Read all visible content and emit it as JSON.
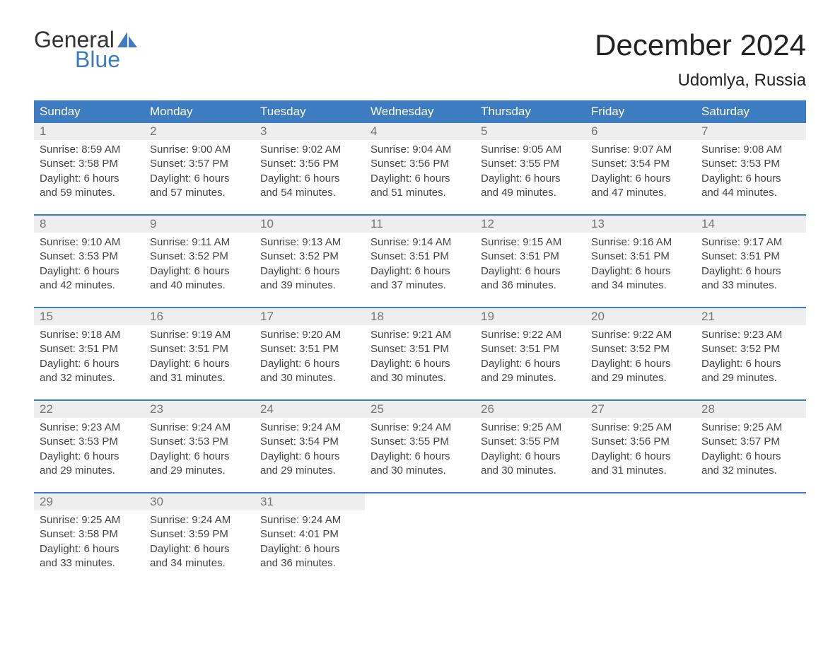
{
  "logo": {
    "text_general": "General",
    "text_blue": "Blue",
    "sail_color": "#3d7cc0"
  },
  "title": {
    "month": "December 2024",
    "location": "Udomlya, Russia"
  },
  "colors": {
    "header_bg": "#3d7cc0",
    "header_text": "#ffffff",
    "daynum_bg": "#eeeeee",
    "daynum_text": "#757575",
    "body_text": "#444444",
    "row_divider": "#3d7cc0",
    "page_bg": "#ffffff"
  },
  "weekdays": [
    "Sunday",
    "Monday",
    "Tuesday",
    "Wednesday",
    "Thursday",
    "Friday",
    "Saturday"
  ],
  "weeks": [
    [
      {
        "day": "1",
        "sunrise": "Sunrise: 8:59 AM",
        "sunset": "Sunset: 3:58 PM",
        "daylight1": "Daylight: 6 hours",
        "daylight2": "and 59 minutes."
      },
      {
        "day": "2",
        "sunrise": "Sunrise: 9:00 AM",
        "sunset": "Sunset: 3:57 PM",
        "daylight1": "Daylight: 6 hours",
        "daylight2": "and 57 minutes."
      },
      {
        "day": "3",
        "sunrise": "Sunrise: 9:02 AM",
        "sunset": "Sunset: 3:56 PM",
        "daylight1": "Daylight: 6 hours",
        "daylight2": "and 54 minutes."
      },
      {
        "day": "4",
        "sunrise": "Sunrise: 9:04 AM",
        "sunset": "Sunset: 3:56 PM",
        "daylight1": "Daylight: 6 hours",
        "daylight2": "and 51 minutes."
      },
      {
        "day": "5",
        "sunrise": "Sunrise: 9:05 AM",
        "sunset": "Sunset: 3:55 PM",
        "daylight1": "Daylight: 6 hours",
        "daylight2": "and 49 minutes."
      },
      {
        "day": "6",
        "sunrise": "Sunrise: 9:07 AM",
        "sunset": "Sunset: 3:54 PM",
        "daylight1": "Daylight: 6 hours",
        "daylight2": "and 47 minutes."
      },
      {
        "day": "7",
        "sunrise": "Sunrise: 9:08 AM",
        "sunset": "Sunset: 3:53 PM",
        "daylight1": "Daylight: 6 hours",
        "daylight2": "and 44 minutes."
      }
    ],
    [
      {
        "day": "8",
        "sunrise": "Sunrise: 9:10 AM",
        "sunset": "Sunset: 3:53 PM",
        "daylight1": "Daylight: 6 hours",
        "daylight2": "and 42 minutes."
      },
      {
        "day": "9",
        "sunrise": "Sunrise: 9:11 AM",
        "sunset": "Sunset: 3:52 PM",
        "daylight1": "Daylight: 6 hours",
        "daylight2": "and 40 minutes."
      },
      {
        "day": "10",
        "sunrise": "Sunrise: 9:13 AM",
        "sunset": "Sunset: 3:52 PM",
        "daylight1": "Daylight: 6 hours",
        "daylight2": "and 39 minutes."
      },
      {
        "day": "11",
        "sunrise": "Sunrise: 9:14 AM",
        "sunset": "Sunset: 3:51 PM",
        "daylight1": "Daylight: 6 hours",
        "daylight2": "and 37 minutes."
      },
      {
        "day": "12",
        "sunrise": "Sunrise: 9:15 AM",
        "sunset": "Sunset: 3:51 PM",
        "daylight1": "Daylight: 6 hours",
        "daylight2": "and 36 minutes."
      },
      {
        "day": "13",
        "sunrise": "Sunrise: 9:16 AM",
        "sunset": "Sunset: 3:51 PM",
        "daylight1": "Daylight: 6 hours",
        "daylight2": "and 34 minutes."
      },
      {
        "day": "14",
        "sunrise": "Sunrise: 9:17 AM",
        "sunset": "Sunset: 3:51 PM",
        "daylight1": "Daylight: 6 hours",
        "daylight2": "and 33 minutes."
      }
    ],
    [
      {
        "day": "15",
        "sunrise": "Sunrise: 9:18 AM",
        "sunset": "Sunset: 3:51 PM",
        "daylight1": "Daylight: 6 hours",
        "daylight2": "and 32 minutes."
      },
      {
        "day": "16",
        "sunrise": "Sunrise: 9:19 AM",
        "sunset": "Sunset: 3:51 PM",
        "daylight1": "Daylight: 6 hours",
        "daylight2": "and 31 minutes."
      },
      {
        "day": "17",
        "sunrise": "Sunrise: 9:20 AM",
        "sunset": "Sunset: 3:51 PM",
        "daylight1": "Daylight: 6 hours",
        "daylight2": "and 30 minutes."
      },
      {
        "day": "18",
        "sunrise": "Sunrise: 9:21 AM",
        "sunset": "Sunset: 3:51 PM",
        "daylight1": "Daylight: 6 hours",
        "daylight2": "and 30 minutes."
      },
      {
        "day": "19",
        "sunrise": "Sunrise: 9:22 AM",
        "sunset": "Sunset: 3:51 PM",
        "daylight1": "Daylight: 6 hours",
        "daylight2": "and 29 minutes."
      },
      {
        "day": "20",
        "sunrise": "Sunrise: 9:22 AM",
        "sunset": "Sunset: 3:52 PM",
        "daylight1": "Daylight: 6 hours",
        "daylight2": "and 29 minutes."
      },
      {
        "day": "21",
        "sunrise": "Sunrise: 9:23 AM",
        "sunset": "Sunset: 3:52 PM",
        "daylight1": "Daylight: 6 hours",
        "daylight2": "and 29 minutes."
      }
    ],
    [
      {
        "day": "22",
        "sunrise": "Sunrise: 9:23 AM",
        "sunset": "Sunset: 3:53 PM",
        "daylight1": "Daylight: 6 hours",
        "daylight2": "and 29 minutes."
      },
      {
        "day": "23",
        "sunrise": "Sunrise: 9:24 AM",
        "sunset": "Sunset: 3:53 PM",
        "daylight1": "Daylight: 6 hours",
        "daylight2": "and 29 minutes."
      },
      {
        "day": "24",
        "sunrise": "Sunrise: 9:24 AM",
        "sunset": "Sunset: 3:54 PM",
        "daylight1": "Daylight: 6 hours",
        "daylight2": "and 29 minutes."
      },
      {
        "day": "25",
        "sunrise": "Sunrise: 9:24 AM",
        "sunset": "Sunset: 3:55 PM",
        "daylight1": "Daylight: 6 hours",
        "daylight2": "and 30 minutes."
      },
      {
        "day": "26",
        "sunrise": "Sunrise: 9:25 AM",
        "sunset": "Sunset: 3:55 PM",
        "daylight1": "Daylight: 6 hours",
        "daylight2": "and 30 minutes."
      },
      {
        "day": "27",
        "sunrise": "Sunrise: 9:25 AM",
        "sunset": "Sunset: 3:56 PM",
        "daylight1": "Daylight: 6 hours",
        "daylight2": "and 31 minutes."
      },
      {
        "day": "28",
        "sunrise": "Sunrise: 9:25 AM",
        "sunset": "Sunset: 3:57 PM",
        "daylight1": "Daylight: 6 hours",
        "daylight2": "and 32 minutes."
      }
    ],
    [
      {
        "day": "29",
        "sunrise": "Sunrise: 9:25 AM",
        "sunset": "Sunset: 3:58 PM",
        "daylight1": "Daylight: 6 hours",
        "daylight2": "and 33 minutes."
      },
      {
        "day": "30",
        "sunrise": "Sunrise: 9:24 AM",
        "sunset": "Sunset: 3:59 PM",
        "daylight1": "Daylight: 6 hours",
        "daylight2": "and 34 minutes."
      },
      {
        "day": "31",
        "sunrise": "Sunrise: 9:24 AM",
        "sunset": "Sunset: 4:01 PM",
        "daylight1": "Daylight: 6 hours",
        "daylight2": "and 36 minutes."
      },
      null,
      null,
      null,
      null
    ]
  ]
}
